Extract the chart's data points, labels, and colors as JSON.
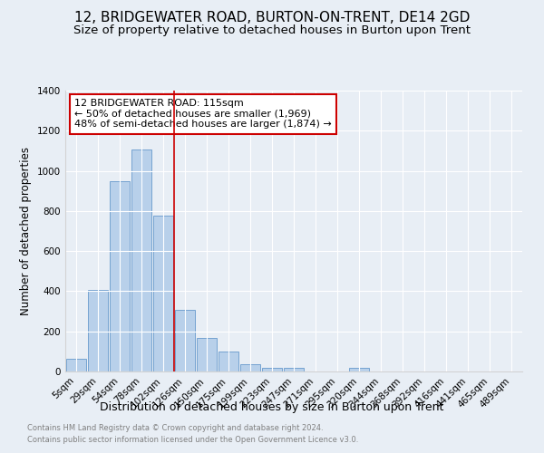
{
  "title": "12, BRIDGEWATER ROAD, BURTON-ON-TRENT, DE14 2GD",
  "subtitle": "Size of property relative to detached houses in Burton upon Trent",
  "xlabel": "Distribution of detached houses by size in Burton upon Trent",
  "ylabel": "Number of detached properties",
  "footnote1": "Contains HM Land Registry data © Crown copyright and database right 2024.",
  "footnote2": "Contains public sector information licensed under the Open Government Licence v3.0.",
  "bar_labels": [
    "5sqm",
    "29sqm",
    "54sqm",
    "78sqm",
    "102sqm",
    "126sqm",
    "150sqm",
    "175sqm",
    "199sqm",
    "223sqm",
    "247sqm",
    "271sqm",
    "295sqm",
    "320sqm",
    "344sqm",
    "368sqm",
    "392sqm",
    "416sqm",
    "441sqm",
    "465sqm",
    "489sqm"
  ],
  "bar_values": [
    65,
    405,
    950,
    1105,
    775,
    305,
    165,
    98,
    35,
    20,
    18,
    0,
    0,
    18,
    0,
    0,
    0,
    0,
    0,
    0,
    0
  ],
  "bar_color": "#b8d0ea",
  "bar_edge_color": "#6699cc",
  "vline_x": 4.5,
  "vline_color": "#cc0000",
  "annotation_text": "12 BRIDGEWATER ROAD: 115sqm\n← 50% of detached houses are smaller (1,969)\n48% of semi-detached houses are larger (1,874) →",
  "annotation_box_color": "#ffffff",
  "annotation_box_edge_color": "#cc0000",
  "ylim": [
    0,
    1400
  ],
  "yticks": [
    0,
    200,
    400,
    600,
    800,
    1000,
    1200,
    1400
  ],
  "bg_color": "#e8eef5",
  "title_fontsize": 11,
  "subtitle_fontsize": 9.5,
  "xlabel_fontsize": 9,
  "ylabel_fontsize": 8.5,
  "tick_fontsize": 7.5,
  "annotation_fontsize": 8
}
